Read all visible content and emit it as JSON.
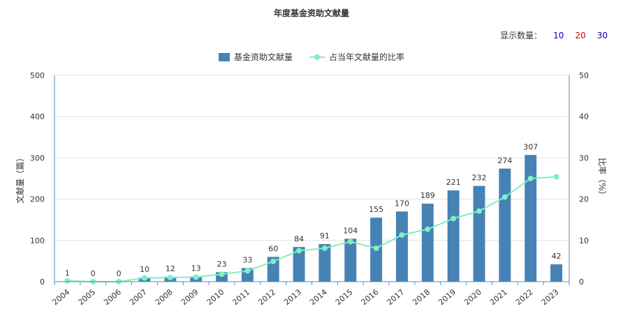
{
  "title": "年度基金资助文献量",
  "display_count": {
    "label": "显示数量：",
    "options": [
      {
        "value": "10",
        "color": "#0000cc"
      },
      {
        "value": "20",
        "color": "#cc0000"
      },
      {
        "value": "30",
        "color": "#000099"
      }
    ]
  },
  "legend": {
    "bar_label": "基金资助文献量",
    "line_label": "占当年文献量的比率"
  },
  "colors": {
    "bar": "#4682b4",
    "line": "#7ff0c0",
    "axis": "#4a90c4"
  },
  "chart_data": {
    "type": "bar",
    "title": "年度基金资助文献量",
    "categories": [
      "2004",
      "2005",
      "2006",
      "2007",
      "2008",
      "2009",
      "2010",
      "2011",
      "2012",
      "2013",
      "2014",
      "2015",
      "2016",
      "2017",
      "2018",
      "2019",
      "2020",
      "2021",
      "2022",
      "2023"
    ],
    "series": [
      {
        "name": "基金资助文献量",
        "type": "bar",
        "axis": "left",
        "values": [
          1,
          0,
          0,
          10,
          12,
          13,
          23,
          33,
          60,
          84,
          91,
          104,
          155,
          170,
          189,
          221,
          232,
          274,
          307,
          42
        ]
      },
      {
        "name": "占当年文献量的比率",
        "type": "line",
        "axis": "right",
        "values": [
          0.2,
          0,
          0,
          0.9,
          1.0,
          1.1,
          1.8,
          2.6,
          4.9,
          7.5,
          8.1,
          9.7,
          8.1,
          11.3,
          12.7,
          15.3,
          17.1,
          20.5,
          25.0,
          25.4
        ]
      }
    ],
    "ylabel_left": "文献量（篇）",
    "ylabel_right": "比率（%）",
    "ylim_left": [
      0,
      500
    ],
    "ylim_right": [
      0,
      50
    ],
    "yticks_left": [
      "0",
      "100",
      "200",
      "300",
      "400",
      "500"
    ],
    "yticks_right": [
      "0",
      "10",
      "20",
      "30",
      "40",
      "50"
    ],
    "grid": true,
    "legend_position": "top-center"
  }
}
